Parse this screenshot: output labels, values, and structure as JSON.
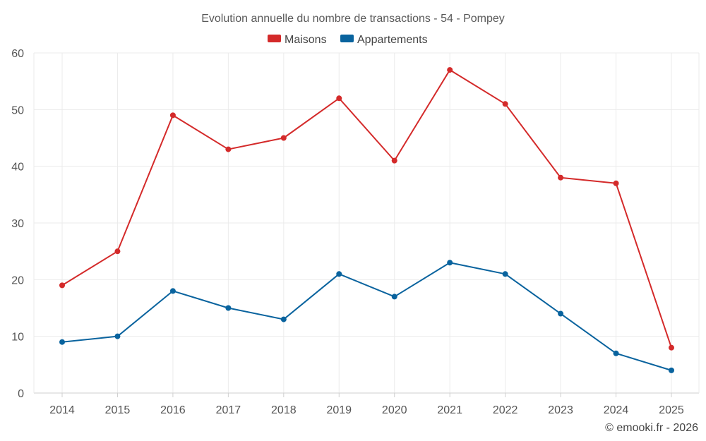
{
  "chart_data": {
    "type": "line",
    "title": "Evolution annuelle du nombre de transactions - 54 - Pompey",
    "categories": [
      "2014",
      "2015",
      "2016",
      "2017",
      "2018",
      "2019",
      "2020",
      "2021",
      "2022",
      "2023",
      "2024",
      "2025"
    ],
    "series": [
      {
        "name": "Maisons",
        "color": "#d42a2a",
        "values": [
          19,
          25,
          49,
          43,
          45,
          52,
          41,
          57,
          51,
          38,
          37,
          8
        ]
      },
      {
        "name": "Appartements",
        "color": "#09639e",
        "values": [
          9,
          10,
          18,
          15,
          13,
          21,
          17,
          23,
          21,
          14,
          7,
          4
        ]
      }
    ],
    "ylim": [
      0,
      60
    ],
    "yticks": [
      0,
      10,
      20,
      30,
      40,
      50,
      60
    ],
    "xlabel": "",
    "ylabel": "",
    "grid": true,
    "legend": "top-center"
  },
  "credit": "© emooki.fr - 2026"
}
